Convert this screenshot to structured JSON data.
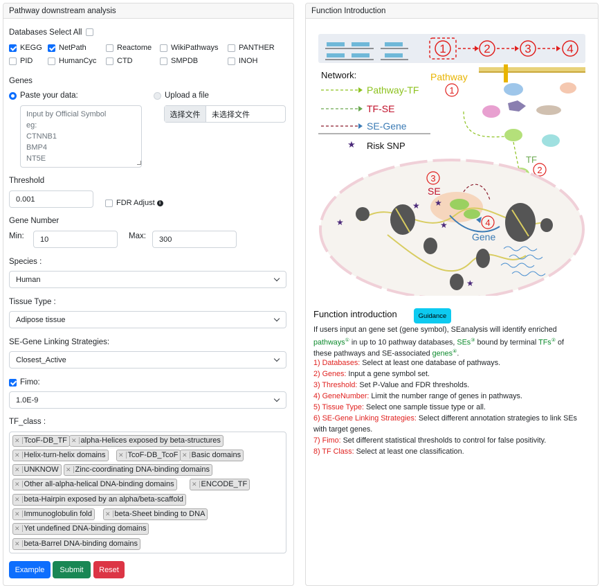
{
  "left_panel": {
    "title": "Pathway downstream analysis",
    "databases_label": "Databases Select All",
    "databases": [
      {
        "label": "KEGG",
        "checked": true
      },
      {
        "label": "NetPath",
        "checked": true
      },
      {
        "label": "Reactome",
        "checked": false
      },
      {
        "label": "WikiPathways",
        "checked": false
      },
      {
        "label": "PANTHER",
        "checked": false
      },
      {
        "label": "PID",
        "checked": false
      },
      {
        "label": "HumanCyc",
        "checked": false
      },
      {
        "label": "CTD",
        "checked": false
      },
      {
        "label": "SMPDB",
        "checked": false
      },
      {
        "label": "INOH",
        "checked": false
      }
    ],
    "genes_label": "Genes",
    "paste_label": "Paste your data:",
    "upload_label": "Upload a file",
    "gene_placeholder": "Input by Official Symbol\neg:\nCTNNB1\nBMP4\nNT5E",
    "file_button": "选择文件",
    "file_status": "未选择文件",
    "threshold_label": "Threshold",
    "threshold_value": "0.001",
    "fdr_label": "FDR Adjust",
    "gene_number_label": "Gene Number",
    "min_label": "Min:",
    "min_value": "10",
    "max_label": "Max:",
    "max_value": "300",
    "species_label": "Species :",
    "species_value": "Human",
    "tissue_label": "Tissue Type :",
    "tissue_value": "Adipose tissue",
    "strategy_label": "SE-Gene Linking Strategies:",
    "strategy_value": "Closest_Active",
    "fimo_label": "Fimo:",
    "fimo_value": "1.0E-9",
    "tf_class_label": "TF_class :",
    "tf_classes": [
      "TcoF-DB_TF",
      "alpha-Helices exposed by beta-structures",
      "Helix-turn-helix domains",
      "TcoF-DB_TcoF",
      "Basic domains",
      "UNKNOW",
      "Zinc-coordinating DNA-binding domains",
      "Other all-alpha-helical DNA-binding domains",
      "ENCODE_TF",
      "beta-Hairpin exposed by an alpha/beta-scaffold",
      "Immunoglobulin fold",
      "beta-Sheet binding to DNA",
      "Yet undefined DNA-binding domains",
      "beta-Barrel DNA-binding domains"
    ],
    "buttons": {
      "example": "Example",
      "submit": "Submit",
      "reset": "Reset"
    }
  },
  "right_panel": {
    "title": "Function Introduction",
    "diagram": {
      "steps": [
        "1",
        "2",
        "3",
        "4"
      ],
      "network_label": "Network:",
      "pathway_label": "Pathway",
      "legend": [
        {
          "label": "Pathway-TF",
          "color": "#8dc21f"
        },
        {
          "label": "TF-SE",
          "color": "#6aa84f"
        },
        {
          "label": "SE-Gene",
          "color": "#8a1c2c"
        },
        {
          "label": "Risk SNP",
          "color": "#4b2a7a"
        }
      ],
      "tf_label": "TF",
      "se_label": "SE",
      "gene_label": "Gene"
    },
    "intro_heading": "Function introduction",
    "guidance_button": "Guidance",
    "intro_lines": {
      "l1": "If users input an gene set (gene symbol), SEanalysis will identify enriched",
      "l2a": "pathways",
      "l2b": " in up to 10 pathway databases, ",
      "l2c": "SEs",
      "l2d": " bound by terminal ",
      "l2e": "TFs",
      "l2f": " of",
      "l3a": "these pathways and SE-associated ",
      "l3b": "genes",
      "l3c": "."
    },
    "items": [
      {
        "key": "1) Databases:",
        "text": " Select at least one database of pathways."
      },
      {
        "key": "2) Genes:",
        "text": " Input a gene symbol set."
      },
      {
        "key": "3) Threshold:",
        "text": " Set P-Value and FDR thresholds."
      },
      {
        "key": "4) GeneNumber:",
        "text": " Limit the number range of genes in pathways."
      },
      {
        "key": "5) Tissue Type:",
        "text": " Select one sample tissue type or all."
      },
      {
        "key": "6) SE-Gene Linking Strategies:",
        "text": " Select different annotation strategies to link SEs"
      },
      {
        "key": "",
        "text": "with target genes."
      },
      {
        "key": "7) Fimo:",
        "text": " Set different statistical thresholds to control for false positivity."
      },
      {
        "key": "8) TF Class:",
        "text": " Select at least one classification."
      }
    ],
    "circled": [
      "①",
      "③",
      "②",
      "④"
    ]
  },
  "colors": {
    "primary": "#0d6efd",
    "success": "#198754",
    "danger": "#dc3545",
    "guidance": "#0dcaf0",
    "highlight_red": "#e0201e",
    "highlight_green": "#0d8a2d"
  }
}
